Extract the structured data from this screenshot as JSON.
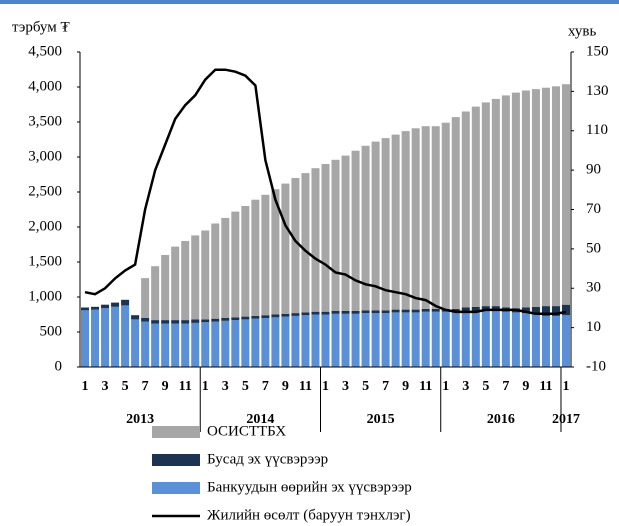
{
  "chart_data": {
    "type": "bar",
    "y_label": "тэрбум ₮",
    "y2_label": "хувь",
    "categories": [
      "1",
      null,
      "3",
      null,
      "5",
      null,
      "7",
      null,
      "9",
      null,
      "11",
      null,
      "1",
      null,
      "3",
      null,
      "5",
      null,
      "7",
      null,
      "9",
      null,
      "11",
      null,
      "1",
      null,
      "3",
      null,
      "5",
      null,
      "7",
      null,
      "9",
      null,
      "11",
      null,
      "1",
      null,
      "3",
      null,
      "5",
      null,
      "7",
      null,
      "9",
      null,
      "11",
      null,
      "1"
    ],
    "year_labels": [
      "2013",
      "2014",
      "2015",
      "2016",
      "2017"
    ],
    "stacked": true,
    "series": [
      {
        "name": "Банкуудын өөрийн эх үүсвэрээр",
        "color": "#5b8fd6",
        "values": [
          810,
          820,
          840,
          860,
          880,
          680,
          650,
          620,
          620,
          620,
          620,
          630,
          640,
          650,
          660,
          670,
          680,
          690,
          700,
          710,
          720,
          730,
          740,
          750,
          750,
          760,
          760,
          760,
          770,
          770,
          770,
          780,
          780,
          780,
          790,
          790,
          790,
          790,
          790,
          790,
          800,
          800,
          790,
          780,
          770,
          750,
          730,
          730,
          740
        ]
      },
      {
        "name": "Бусад эх үүсвэрээр",
        "color": "#1c3352",
        "values": [
          40,
          40,
          50,
          60,
          80,
          60,
          50,
          50,
          50,
          50,
          50,
          50,
          40,
          40,
          40,
          40,
          40,
          40,
          40,
          40,
          40,
          40,
          40,
          40,
          40,
          40,
          40,
          40,
          40,
          40,
          40,
          40,
          40,
          40,
          40,
          40,
          40,
          40,
          60,
          70,
          70,
          70,
          60,
          60,
          80,
          110,
          140,
          140,
          150
        ]
      },
      {
        "name": "ОСИСТТБХ",
        "color": "#a6a6a6",
        "values": [
          0,
          0,
          0,
          0,
          0,
          0,
          570,
          770,
          930,
          1050,
          1130,
          1200,
          1270,
          1360,
          1430,
          1510,
          1580,
          1660,
          1720,
          1790,
          1860,
          1930,
          1990,
          2050,
          2110,
          2160,
          2220,
          2290,
          2350,
          2410,
          2460,
          2500,
          2550,
          2590,
          2610,
          2610,
          2660,
          2740,
          2800,
          2860,
          2910,
          2960,
          3030,
          3080,
          3100,
          3110,
          3120,
          3140,
          3150
        ]
      },
      {
        "name": "Жилийн өсөлт (баруун тэнхлэг)",
        "color": "#000000",
        "type": "line",
        "axis": "y2",
        "values": [
          28,
          27,
          30,
          35,
          39,
          42,
          70,
          90,
          103,
          116,
          123,
          128,
          136,
          141,
          141,
          140,
          138,
          133,
          95,
          75,
          62,
          54,
          49,
          45,
          42,
          38,
          37,
          34,
          32,
          31,
          29,
          28,
          27,
          25,
          24,
          21,
          19,
          18,
          18,
          18,
          19,
          19,
          19,
          19,
          18,
          17,
          17,
          17,
          18
        ]
      }
    ],
    "ylim": [
      0,
      4500
    ],
    "yticks": [
      0,
      500,
      {
        "value": 1000,
        "label": "1,000"
      },
      {
        "value": 1500,
        "label": "1,500"
      },
      {
        "value": 2000,
        "label": "2,000"
      },
      {
        "value": 2500,
        "label": "2,500"
      },
      {
        "value": 3000,
        "label": "3,000"
      },
      {
        "value": 3500,
        "label": "3,500"
      },
      {
        "value": 4000,
        "label": "4,000"
      },
      {
        "value": 4500,
        "label": "4,500"
      }
    ],
    "y2lim": [
      -10,
      150
    ],
    "y2ticks": [
      -10,
      10,
      30,
      50,
      70,
      90,
      110,
      130,
      150
    ],
    "grid": false
  }
}
